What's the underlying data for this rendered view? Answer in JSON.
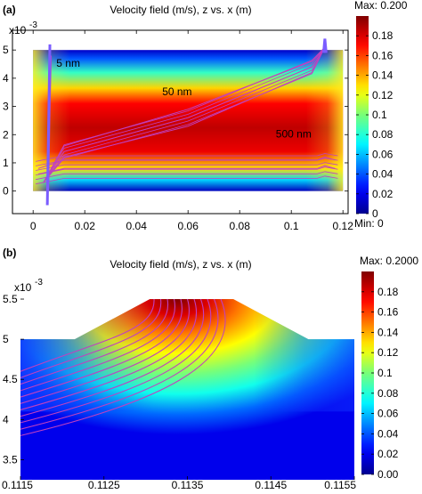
{
  "chart_data": [
    {
      "panel_label": "(a)",
      "type": "heatmap",
      "title": "Velocity field (m/s), z vs. x (m)",
      "y_exponent": "x10",
      "y_exponent_power": "-3",
      "xlim": [
        -0.008,
        0.122
      ],
      "ylim": [
        -0.0008,
        0.0057
      ],
      "xticks": [
        "0",
        "0.02",
        "0.04",
        "0.06",
        "0.08",
        "0.1",
        "0.12"
      ],
      "xtick_values": [
        0,
        0.02,
        0.04,
        0.06,
        0.08,
        0.1,
        0.12
      ],
      "yticks": [
        "0",
        "1",
        "2",
        "3",
        "4",
        "5"
      ],
      "ytick_values": [
        0,
        0.001,
        0.002,
        0.003,
        0.004,
        0.005
      ],
      "domain": {
        "x": [
          0,
          0.12
        ],
        "z": [
          0,
          0.005
        ]
      },
      "colorbar": {
        "max_label": "Max: 0.200",
        "min_label": "Min: 0",
        "ticks": [
          "0",
          "0.02",
          "0.04",
          "0.06",
          "0.08",
          "0.1",
          "0.12",
          "0.14",
          "0.16",
          "0.18"
        ],
        "tick_values": [
          0,
          0.02,
          0.04,
          0.06,
          0.08,
          0.1,
          0.12,
          0.14,
          0.16,
          0.18
        ],
        "range": [
          0,
          0.2
        ]
      },
      "annotations": [
        {
          "text": "5 nm",
          "x": 0.009,
          "z": 0.0044
        },
        {
          "text": "50 nm",
          "x": 0.05,
          "z": 0.0034
        },
        {
          "text": "500 nm",
          "x": 0.094,
          "z": 0.0019
        }
      ],
      "streamlines": [
        {
          "name": "5 nm",
          "points": [
            [
              0.006,
              0.0
            ],
            [
              0.0065,
              0.0025
            ],
            [
              0.007,
              0.0048
            ]
          ]
        },
        {
          "name": "500 nm",
          "points": [
            [
              0.002,
              0.0008
            ],
            [
              0.012,
              0.0011
            ],
            [
              0.06,
              0.0011
            ],
            [
              0.11,
              0.0011
            ],
            [
              0.113,
              0.0012
            ],
            [
              0.117,
              0.0011
            ]
          ]
        },
        {
          "name": "500 nm",
          "points": [
            [
              0.002,
              0.0006
            ],
            [
              0.012,
              0.0008
            ],
            [
              0.06,
              0.0008
            ],
            [
              0.11,
              0.0008
            ],
            [
              0.113,
              0.0009
            ],
            [
              0.117,
              0.0008
            ]
          ]
        },
        {
          "name": "50 nm",
          "points": [
            [
              0.004,
              0.0003
            ],
            [
              0.012,
              0.0014
            ],
            [
              0.06,
              0.0026
            ],
            [
              0.108,
              0.0044
            ],
            [
              0.113,
              0.0051
            ]
          ]
        },
        {
          "name": "50 nm",
          "points": [
            [
              0.004,
              0.0003
            ],
            [
              0.012,
              0.0012
            ],
            [
              0.06,
              0.0023
            ],
            [
              0.108,
              0.0042
            ],
            [
              0.113,
              0.0051
            ]
          ]
        },
        {
          "name": "50 nm",
          "points": [
            [
              0.004,
              0.0003
            ],
            [
              0.012,
              0.0016
            ],
            [
              0.06,
              0.0029
            ],
            [
              0.108,
              0.0046
            ],
            [
              0.113,
              0.0051
            ]
          ]
        }
      ],
      "colors": {
        "frame": "#000000",
        "streamline": "#c040c0",
        "streamline_edge": "#7a5cff"
      }
    },
    {
      "panel_label": "(b)",
      "type": "heatmap",
      "title": "Velocity field (m/s), z vs. x (m)",
      "y_exponent": "x10",
      "y_exponent_power": "-3",
      "xlim": [
        0.1115,
        0.1155
      ],
      "ylim": [
        0.00325,
        0.0056
      ],
      "xticks": [
        "0.1115",
        "0.1125",
        "0.1135",
        "0.1145",
        "0.1155"
      ],
      "xtick_values": [
        0.1115,
        0.1125,
        0.1135,
        0.1145,
        0.1155
      ],
      "yticks": [
        "3.5",
        "4",
        "4.5",
        "5",
        "5.5"
      ],
      "ytick_values": [
        0.0035,
        0.004,
        0.0045,
        0.005,
        0.0055
      ],
      "colorbar": {
        "max_label": "Max: 0.2000",
        "min_label": "",
        "ticks": [
          "0.00",
          "0.02",
          "0.04",
          "0.06",
          "0.08",
          "0.1",
          "0.12",
          "0.14",
          "0.16",
          "0.18"
        ],
        "tick_values": [
          0,
          0.02,
          0.04,
          0.06,
          0.08,
          0.1,
          0.12,
          0.14,
          0.16,
          0.18
        ],
        "range": [
          0,
          0.2
        ]
      },
      "surface_profile": [
        [
          0.1115,
          0.005
        ],
        [
          0.11215,
          0.005
        ],
        [
          0.11305,
          0.0055
        ],
        [
          0.11405,
          0.0055
        ],
        [
          0.11495,
          0.005
        ],
        [
          0.1155,
          0.005
        ]
      ],
      "streamline_exit": [
        [
          0.1131,
          0.0055
        ],
        [
          0.11318,
          0.0055
        ],
        [
          0.11326,
          0.0055
        ],
        [
          0.11334,
          0.0055
        ],
        [
          0.11342,
          0.0055
        ],
        [
          0.1135,
          0.0055
        ],
        [
          0.11358,
          0.0055
        ],
        [
          0.11366,
          0.0055
        ],
        [
          0.11374,
          0.0055
        ],
        [
          0.11382,
          0.0055
        ],
        [
          0.1139,
          0.0055
        ]
      ],
      "streamline_entry_z": [
        0.0046,
        0.00452,
        0.00444,
        0.00436,
        0.00428,
        0.0042,
        0.00412,
        0.00404,
        0.00396,
        0.00388,
        0.0038,
        0.00372,
        0.00364
      ],
      "colors": {
        "frame": "#000000",
        "streamline": "#c040c0",
        "streamline_edge": "#7a5cff"
      }
    }
  ]
}
